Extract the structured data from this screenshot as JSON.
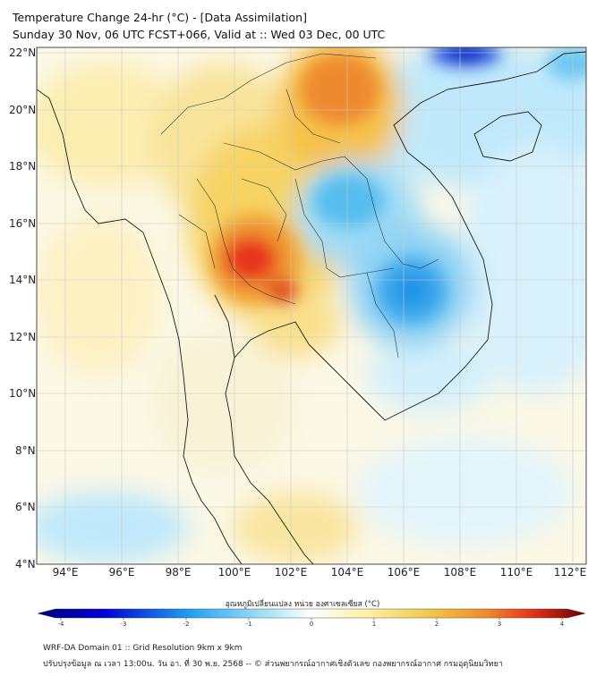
{
  "title_line1": "Temperature Change 24-hr (°C) - [Data Assimilation]",
  "title_line2": "Sunday 30 Nov, 06 UTC FCST+066, Valid at :: Wed 03 Dec, 00 UTC",
  "lat_labels": [
    "22°N",
    "20°N",
    "18°N",
    "16°N",
    "14°N",
    "12°N",
    "10°N",
    "8°N",
    "6°N",
    "4°N"
  ],
  "lon_labels": [
    "94°E",
    "96°E",
    "98°E",
    "100°E",
    "102°E",
    "104°E",
    "106°E",
    "108°E",
    "110°E",
    "112°E"
  ],
  "colorbar": {
    "title": "อุณหภูมิเปลี่ยนแปลง หน่วย องศาเซลเซียส (°C)",
    "ticks": [
      "-4",
      "-3",
      "-2",
      "-1",
      "0",
      "1",
      "2",
      "3",
      "4"
    ]
  },
  "footer_line1": "WRF-DA Domain 01 :: Grid Resolution 9km x 9km",
  "footer_line2": "ปรับปรุงข้อมูล ณ เวลา 13:00น. วัน อา. ที่ 30 พ.ย. 2568 -- © ส่วนพยากรณ์อากาศเชิงตัวเลข กองพยากรณ์อากาศ กรมอุตุนิยมวิทยา",
  "colors": {
    "cold_deep": "#00007a",
    "cold": "#1fa3f0",
    "neutral": "#ffffff",
    "warm": "#f4c542",
    "hot": "#e8341a",
    "hot_deep": "#6a0000"
  }
}
